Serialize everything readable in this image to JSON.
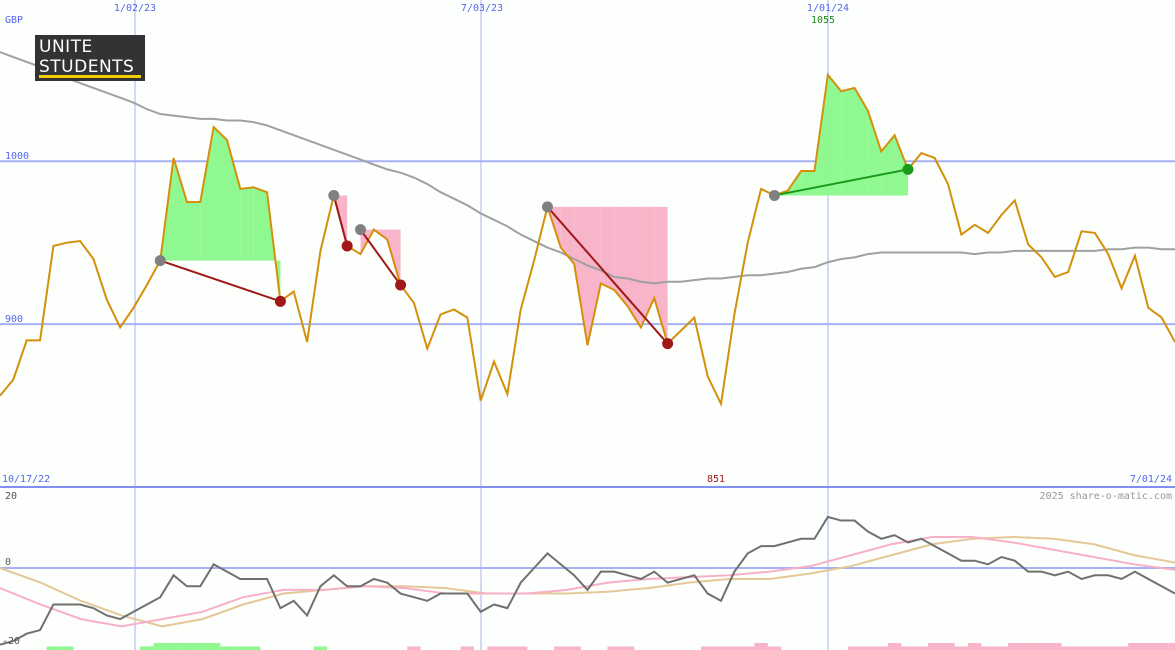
{
  "chart_data": [
    {
      "type": "line",
      "currency_label": "GBP",
      "x_range": [
        "10/17/22",
        "7/01/24"
      ],
      "x_tick_labels": [
        "1/02/23",
        "7/03/23",
        "1/01/24"
      ],
      "ylim": [
        800,
        1099
      ],
      "y_tick_labels": [
        "1000",
        "900"
      ],
      "y_ticks": [
        1000,
        900
      ],
      "high_label": "1055",
      "low_label": "851",
      "grid": true,
      "colors": {
        "price": "#d4900a",
        "moving_average": "#a0a0a0",
        "grid": "#a8b0f4",
        "gain": "#90f890",
        "loss": "#f8b4c8",
        "loss_line": "#a01818",
        "gain_line": "#1a9a1a",
        "entry_marker": "#808080"
      },
      "series": [
        {
          "values": [
            856,
            866,
            890,
            890,
            948,
            950,
            951,
            940,
            915,
            898,
            910,
            924,
            939,
            1002,
            975,
            975,
            1021,
            1013,
            983,
            984,
            981,
            914,
            920,
            889,
            945,
            979,
            948,
            943,
            958,
            952,
            924,
            913,
            885,
            906,
            909,
            904,
            853,
            877,
            857,
            909,
            939,
            972,
            947,
            937,
            887,
            925,
            921,
            911,
            898,
            916,
            888,
            896,
            904,
            868,
            851,
            906,
            950,
            983,
            979,
            982,
            994,
            994,
            1053,
            1043,
            1045,
            1031,
            1006,
            1016,
            995,
            1005,
            1002,
            986,
            955,
            961,
            956,
            967,
            976,
            949,
            941,
            929,
            932,
            957,
            956,
            943,
            922,
            942,
            910,
            904,
            889
          ]
        },
        {
          "values": [
            1067,
            1064,
            1061,
            1058,
            1055,
            1051,
            1048,
            1045,
            1042,
            1039,
            1036,
            1032,
            1029,
            1028,
            1027,
            1026,
            1026,
            1025,
            1025,
            1024,
            1022,
            1019,
            1016,
            1013,
            1010,
            1007,
            1004,
            1001,
            998,
            995,
            993,
            990,
            986,
            981,
            977,
            973,
            968,
            964,
            960,
            955,
            951,
            947,
            944,
            940,
            936,
            933,
            929,
            928,
            926,
            925,
            926,
            926,
            927,
            928,
            928,
            929,
            930,
            930,
            931,
            932,
            934,
            935,
            938,
            940,
            941,
            943,
            944,
            944,
            944,
            944,
            944,
            944,
            944,
            943,
            944,
            944,
            945,
            945,
            945,
            945,
            945,
            945,
            945,
            946,
            946,
            947,
            947,
            946,
            946
          ]
        }
      ],
      "trades": [
        {
          "entry": 939,
          "exit": 914,
          "result": "loss"
        },
        {
          "entry": 979,
          "exit": 948,
          "result": "loss"
        },
        {
          "entry": 958,
          "exit": 924,
          "result": "loss"
        },
        {
          "entry": 972,
          "exit": 888,
          "result": "loss"
        },
        {
          "entry": 979,
          "exit": 995,
          "result": "gain"
        }
      ]
    },
    {
      "type": "line",
      "ylim": [
        -22,
        22
      ],
      "y_tick_labels": [
        "20",
        "0",
        "-20"
      ],
      "y_ticks": [
        20,
        0,
        -20
      ],
      "colors": {
        "oscillator": "#707070",
        "fast": "#f8b0c8",
        "slow": "#e4c898",
        "hist_pos": "#90f890",
        "hist_neg": "#f8b4c8"
      },
      "series": [
        {
          "values": [
            -21,
            -20,
            -18,
            -17,
            -10,
            -10,
            -10,
            -11,
            -13,
            -14,
            -12,
            -10,
            -8,
            -2,
            -5,
            -5,
            1,
            -1,
            -3,
            -3,
            -3,
            -11,
            -9,
            -13,
            -5,
            -2,
            -5,
            -5,
            -3,
            -4,
            -7,
            -8,
            -9,
            -7,
            -7,
            -7,
            -12,
            -10,
            -11,
            -4,
            0,
            4,
            1,
            -2,
            -6,
            -1,
            -1,
            -2,
            -3,
            -1,
            -4,
            -3,
            -2,
            -7,
            -9,
            -1,
            4,
            6,
            6,
            7,
            8,
            8,
            14,
            13,
            13,
            10,
            8,
            9,
            7,
            8,
            6,
            4,
            2,
            2,
            1,
            3,
            2,
            -1,
            -1,
            -2,
            -1,
            -3,
            -2,
            -2,
            -3,
            -1,
            -3,
            -5,
            -7
          ]
        },
        {
          "values": [
            -5.5,
            -10,
            -14,
            -16,
            -14,
            -12,
            -8,
            -6,
            -6,
            -5,
            -5.5,
            -7,
            -7,
            -7,
            -6,
            -4,
            -3,
            -2.5,
            -2,
            -1,
            0.5,
            3.5,
            6.5,
            8.5,
            8.5,
            7,
            5,
            3,
            1,
            -0.5
          ]
        },
        {
          "values": [
            0,
            -4,
            -9,
            -13,
            -16,
            -14,
            -10,
            -7,
            -6,
            -5,
            -5,
            -5.5,
            -7,
            -7,
            -7,
            -6.5,
            -5.5,
            -4,
            -3,
            -3,
            -1.5,
            0.5,
            3.5,
            6.5,
            8,
            8.5,
            8,
            6.5,
            3.5,
            1.5
          ]
        }
      ],
      "histogram": [
        0,
        0,
        0,
        0,
        1,
        1,
        0,
        0,
        0,
        0,
        0,
        1,
        2,
        2,
        2,
        2,
        2,
        1,
        1,
        1,
        0,
        0,
        0,
        0,
        1,
        0,
        0,
        0,
        0,
        0,
        0,
        -1,
        0,
        0,
        0,
        -1,
        0,
        -1,
        -1,
        -1,
        0,
        0,
        -1,
        -1,
        0,
        0,
        -1,
        -1,
        0,
        0,
        0,
        0,
        0,
        -1,
        -1,
        -1,
        -1,
        -2,
        -1,
        0,
        0,
        0,
        0,
        0,
        -1,
        -1,
        -1,
        -2,
        -1,
        -1,
        -2,
        -2,
        -1,
        -2,
        -1,
        -1,
        -2,
        -2,
        -2,
        -2,
        -1,
        -1,
        -1,
        -1,
        -1,
        -2,
        -2,
        -2,
        -2
      ]
    }
  ],
  "logo": {
    "line1": "UNITE",
    "line2": "STUDENTS"
  },
  "credit": "2025 share-o-matic.com"
}
